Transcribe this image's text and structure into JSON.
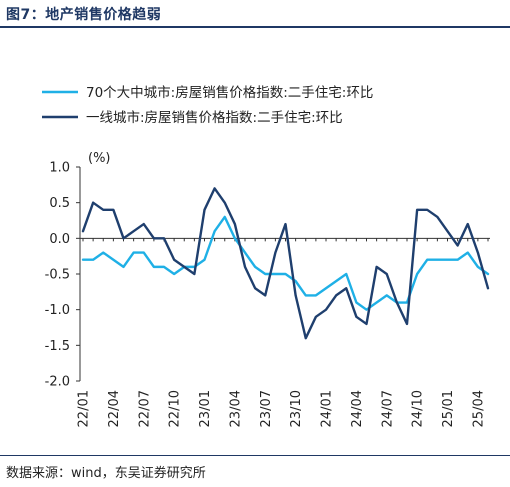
{
  "figure": {
    "title": "图7：地产销售价格趋弱",
    "source": "数据来源：wind，东吴证券研究所"
  },
  "chart_data": {
    "type": "line",
    "unit": "(%)",
    "ylim": [
      -2.0,
      1.0
    ],
    "yticks": [
      "1.0",
      "0.5",
      "0.0",
      "-0.5",
      "-1.0",
      "-1.5",
      "-2.0"
    ],
    "ytick_values": [
      1.0,
      0.5,
      0.0,
      -0.5,
      -1.0,
      -1.5,
      -2.0
    ],
    "xtick_labels": [
      "22/01",
      "22/04",
      "22/07",
      "22/10",
      "23/01",
      "23/04",
      "23/07",
      "23/10",
      "24/01",
      "24/04",
      "24/07",
      "24/10",
      "25/01",
      "25/04"
    ],
    "grid": false,
    "legend_position": "top",
    "x": [
      "22/01",
      "22/02",
      "22/03",
      "22/04",
      "22/05",
      "22/06",
      "22/07",
      "22/08",
      "22/09",
      "22/10",
      "22/11",
      "22/12",
      "23/01",
      "23/02",
      "23/03",
      "23/04",
      "23/05",
      "23/06",
      "23/07",
      "23/08",
      "23/09",
      "23/10",
      "23/11",
      "23/12",
      "24/01",
      "24/02",
      "24/03",
      "24/04",
      "24/05",
      "24/06",
      "24/07",
      "24/08",
      "24/09",
      "24/10",
      "24/11",
      "24/12",
      "25/01",
      "25/02",
      "25/03",
      "25/04",
      "25/05"
    ],
    "series": [
      {
        "name": "70个大中城市:房屋销售价格指数:二手住宅:环比",
        "color": "#1fb0e6",
        "values": [
          -0.3,
          -0.3,
          -0.2,
          -0.3,
          -0.4,
          -0.2,
          -0.2,
          -0.4,
          -0.4,
          -0.5,
          -0.4,
          -0.4,
          -0.3,
          0.1,
          0.3,
          0.0,
          -0.2,
          -0.4,
          -0.5,
          -0.5,
          -0.5,
          -0.6,
          -0.8,
          -0.8,
          -0.7,
          -0.6,
          -0.5,
          -0.9,
          -1.0,
          -0.9,
          -0.8,
          -0.9,
          -0.9,
          -0.5,
          -0.3,
          -0.3,
          -0.3,
          -0.3,
          -0.2,
          -0.4,
          -0.5
        ]
      },
      {
        "name": "一线城市:房屋销售价格指数:二手住宅:环比",
        "color": "#1f3f6e",
        "values": [
          0.1,
          0.5,
          0.4,
          0.4,
          0.0,
          0.1,
          0.2,
          0.0,
          0.0,
          -0.3,
          -0.4,
          -0.5,
          0.4,
          0.7,
          0.5,
          0.2,
          -0.4,
          -0.7,
          -0.8,
          -0.2,
          0.2,
          -0.8,
          -1.4,
          -1.1,
          -1.0,
          -0.8,
          -0.7,
          -1.1,
          -1.2,
          -0.4,
          -0.5,
          -0.9,
          -1.2,
          0.4,
          0.4,
          0.3,
          0.1,
          -0.1,
          0.2,
          -0.2,
          -0.7
        ]
      }
    ]
  }
}
